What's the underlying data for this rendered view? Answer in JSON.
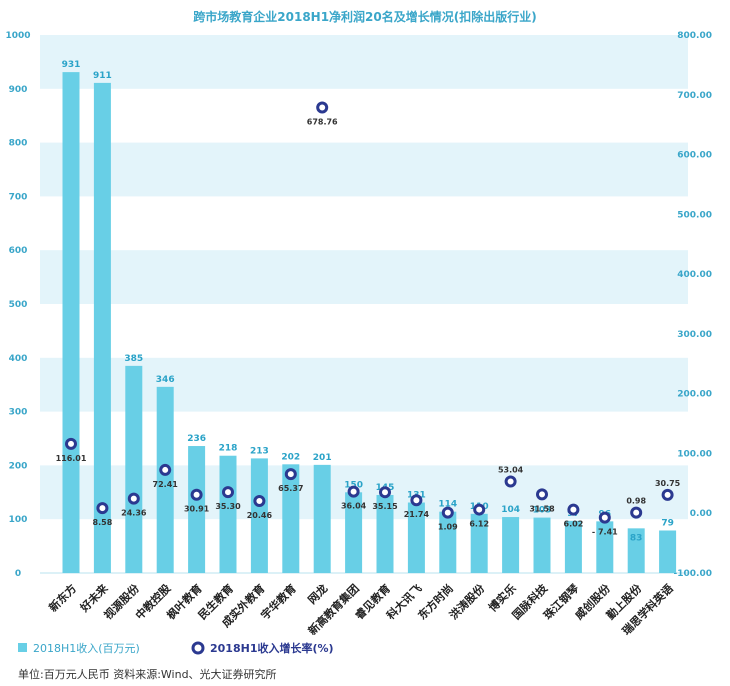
{
  "title": "跨市场教育企业2018H1净利润20名及增长情况(扣除出版行业)",
  "legend": {
    "revenue": "2018H1收入(百万元)",
    "growth": "2018H1收入增长率(%)"
  },
  "footer": "单位:百万元人民币    资料来源:Wind、光大证券研究所",
  "colors": {
    "bar": "#68cfe6",
    "marker": "#2b3990",
    "band": "#e3f4fa",
    "title": "#3aa6c9"
  },
  "chart_data": {
    "type": "bar",
    "title": "跨市场教育企业2018H1净利润20名及增长情况(扣除出版行业)",
    "categories": [
      "新东方",
      "好未来",
      "视源股份",
      "中教控股",
      "枫叶教育",
      "民生教育",
      "成实外教育",
      "宇华教育",
      "网龙",
      "新高教育集团",
      "睿见教育",
      "科大讯飞",
      "东方时尚",
      "洪涛股份",
      "博实乐",
      "国脉科技",
      "珠江钢琴",
      "威创股份",
      "勤上股份",
      "瑞思学科英语"
    ],
    "series": [
      {
        "name": "2018H1收入(百万元)",
        "type": "bar",
        "axis": "left",
        "values": [
          931,
          911,
          385,
          346,
          236,
          218,
          213,
          202,
          201,
          150,
          145,
          131,
          114,
          110,
          104,
          103,
          97,
          96,
          83,
          79
        ]
      },
      {
        "name": "2018H1收入增长率(%)",
        "type": "scatter",
        "axis": "right",
        "values": [
          116.01,
          8.58,
          24.36,
          72.41,
          30.91,
          35.3,
          20.46,
          65.37,
          678.76,
          36.04,
          35.15,
          21.74,
          1.09,
          6.12,
          53.04,
          31.58,
          6.02,
          -7.41,
          0.98,
          30.75
        ],
        "labels": [
          "116.01",
          "8.58",
          "24.36",
          "72.41",
          "30.91",
          "35.30",
          "20.46",
          "65.37",
          "678.76",
          "36.04",
          "35.15",
          "21.74",
          "1.09",
          "6.12",
          "53.04",
          "31.58",
          "6.02",
          "- 7.41",
          "0.98",
          "30.75"
        ]
      }
    ],
    "yleft": {
      "min": 0,
      "max": 1000,
      "ticks": [
        "0",
        "100",
        "200",
        "300",
        "400",
        "500",
        "600",
        "700",
        "800",
        "900",
        "1000"
      ]
    },
    "yright": {
      "min": -100,
      "max": 800,
      "ticks": [
        "-100.00",
        "0.00",
        "100.00",
        "200.00",
        "300.00",
        "400.00",
        "500.00",
        "600.00",
        "700.00",
        "800.00"
      ]
    },
    "grid": "alternating bands",
    "legend_position": "bottom-left"
  }
}
